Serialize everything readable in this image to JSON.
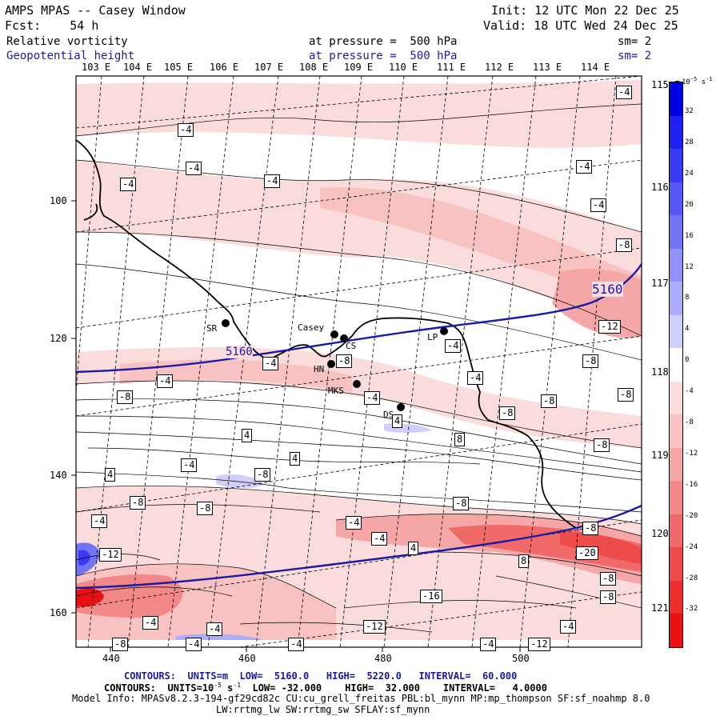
{
  "header": {
    "title": "AMPS MPAS -- Casey Window",
    "fcst": "Fcst:    54 h",
    "init": "Init: 12 UTC Mon 22 Dec 25",
    "valid": "Valid: 18 UTC Wed 24 Dec 25",
    "field1_name": "Relative vorticity",
    "field1_level": "at pressure =  500 hPa",
    "field1_sm": "sm= 2",
    "field2_name": "Geopotential height",
    "field2_level": "at pressure =  500 hPa",
    "field2_sm": "sm= 2"
  },
  "longitude_labels_top": [
    "103 E",
    "104 E",
    "105 E",
    "106 E",
    "107 E",
    "108 E",
    "109 E",
    "110 E",
    "111 E",
    "112 E",
    "113 E",
    "114 E"
  ],
  "longitude_labels_right": [
    "115 E",
    "116 E",
    "117 E",
    "118 E",
    "119 E",
    "120 E",
    "121 E"
  ],
  "x_axis_ticks": [
    "440",
    "460",
    "480",
    "500"
  ],
  "y_axis_ticks": [
    "100",
    "120",
    "140",
    "160"
  ],
  "stations": [
    "SR",
    "Casey",
    "CS",
    "LP",
    "HN",
    "MKS",
    "DS"
  ],
  "contour_value_labels": [
    "-4",
    "-4",
    "-4",
    "-4",
    "-4",
    "-4",
    "-4",
    "-8",
    "-12",
    "-4",
    "-8",
    "-4",
    "-8",
    "-4",
    "-8",
    "-4",
    "-8",
    "-8",
    "4",
    "-8",
    "-4",
    "8",
    "-8",
    "-4",
    "4",
    "4",
    "4",
    "-8",
    "-8",
    "-4",
    "-8",
    "-8",
    "-4",
    "4",
    "-4",
    "-12",
    "-8",
    "-20",
    "8",
    "-16",
    "-8",
    "-4",
    "-4",
    "-12",
    "-4",
    "-8",
    "-4",
    "-4",
    "-8",
    "-4",
    "-12"
  ],
  "height_contour_label": "5160",
  "colorbar": {
    "unit": "10-5 s-1",
    "ticks": [
      "32",
      "28",
      "24",
      "20",
      "16",
      "12",
      "8",
      "4",
      "0",
      "-4",
      "-8",
      "-12",
      "-16",
      "-20",
      "-24",
      "-28",
      "-32"
    ],
    "colors": [
      "#0000e0",
      "#1f1ff0",
      "#3a3af5",
      "#5757f5",
      "#7373f5",
      "#9191f7",
      "#adadf9",
      "#cfcffb",
      "#ffffff",
      "#fbdcdc",
      "#f8c2c2",
      "#f5a7a7",
      "#f28888",
      "#f06a6a",
      "#ee4b4b",
      "#ec2e2e",
      "#e81010"
    ]
  },
  "footer": {
    "line1_a": "CONTOURS:  UNITS=m  LOW=  5160.0",
    "line1_b": "HIGH=  5220.0",
    "line1_c": "INTERVAL=  60.000",
    "line2_a": "CONTOURS:  UNITS=10",
    "line2_exp": "-5",
    "line2_b": " s",
    "line2_exp2": "-1",
    "line2_c": "  LOW= -32.000",
    "line2_d": "HIGH=  32.000",
    "line2_e": "INTERVAL=   4.0000",
    "model_info": "Model Info: MPASv8.2.3-194-gf29cd82c CU:cu_grell_freitas PBL:bl_mynn MP:mp_thompson SF:sf_noahmp 8.0",
    "model_info2": "LW:rrtmg_lw SW:rrtmg_sw SFLAY:sf_mynn"
  }
}
